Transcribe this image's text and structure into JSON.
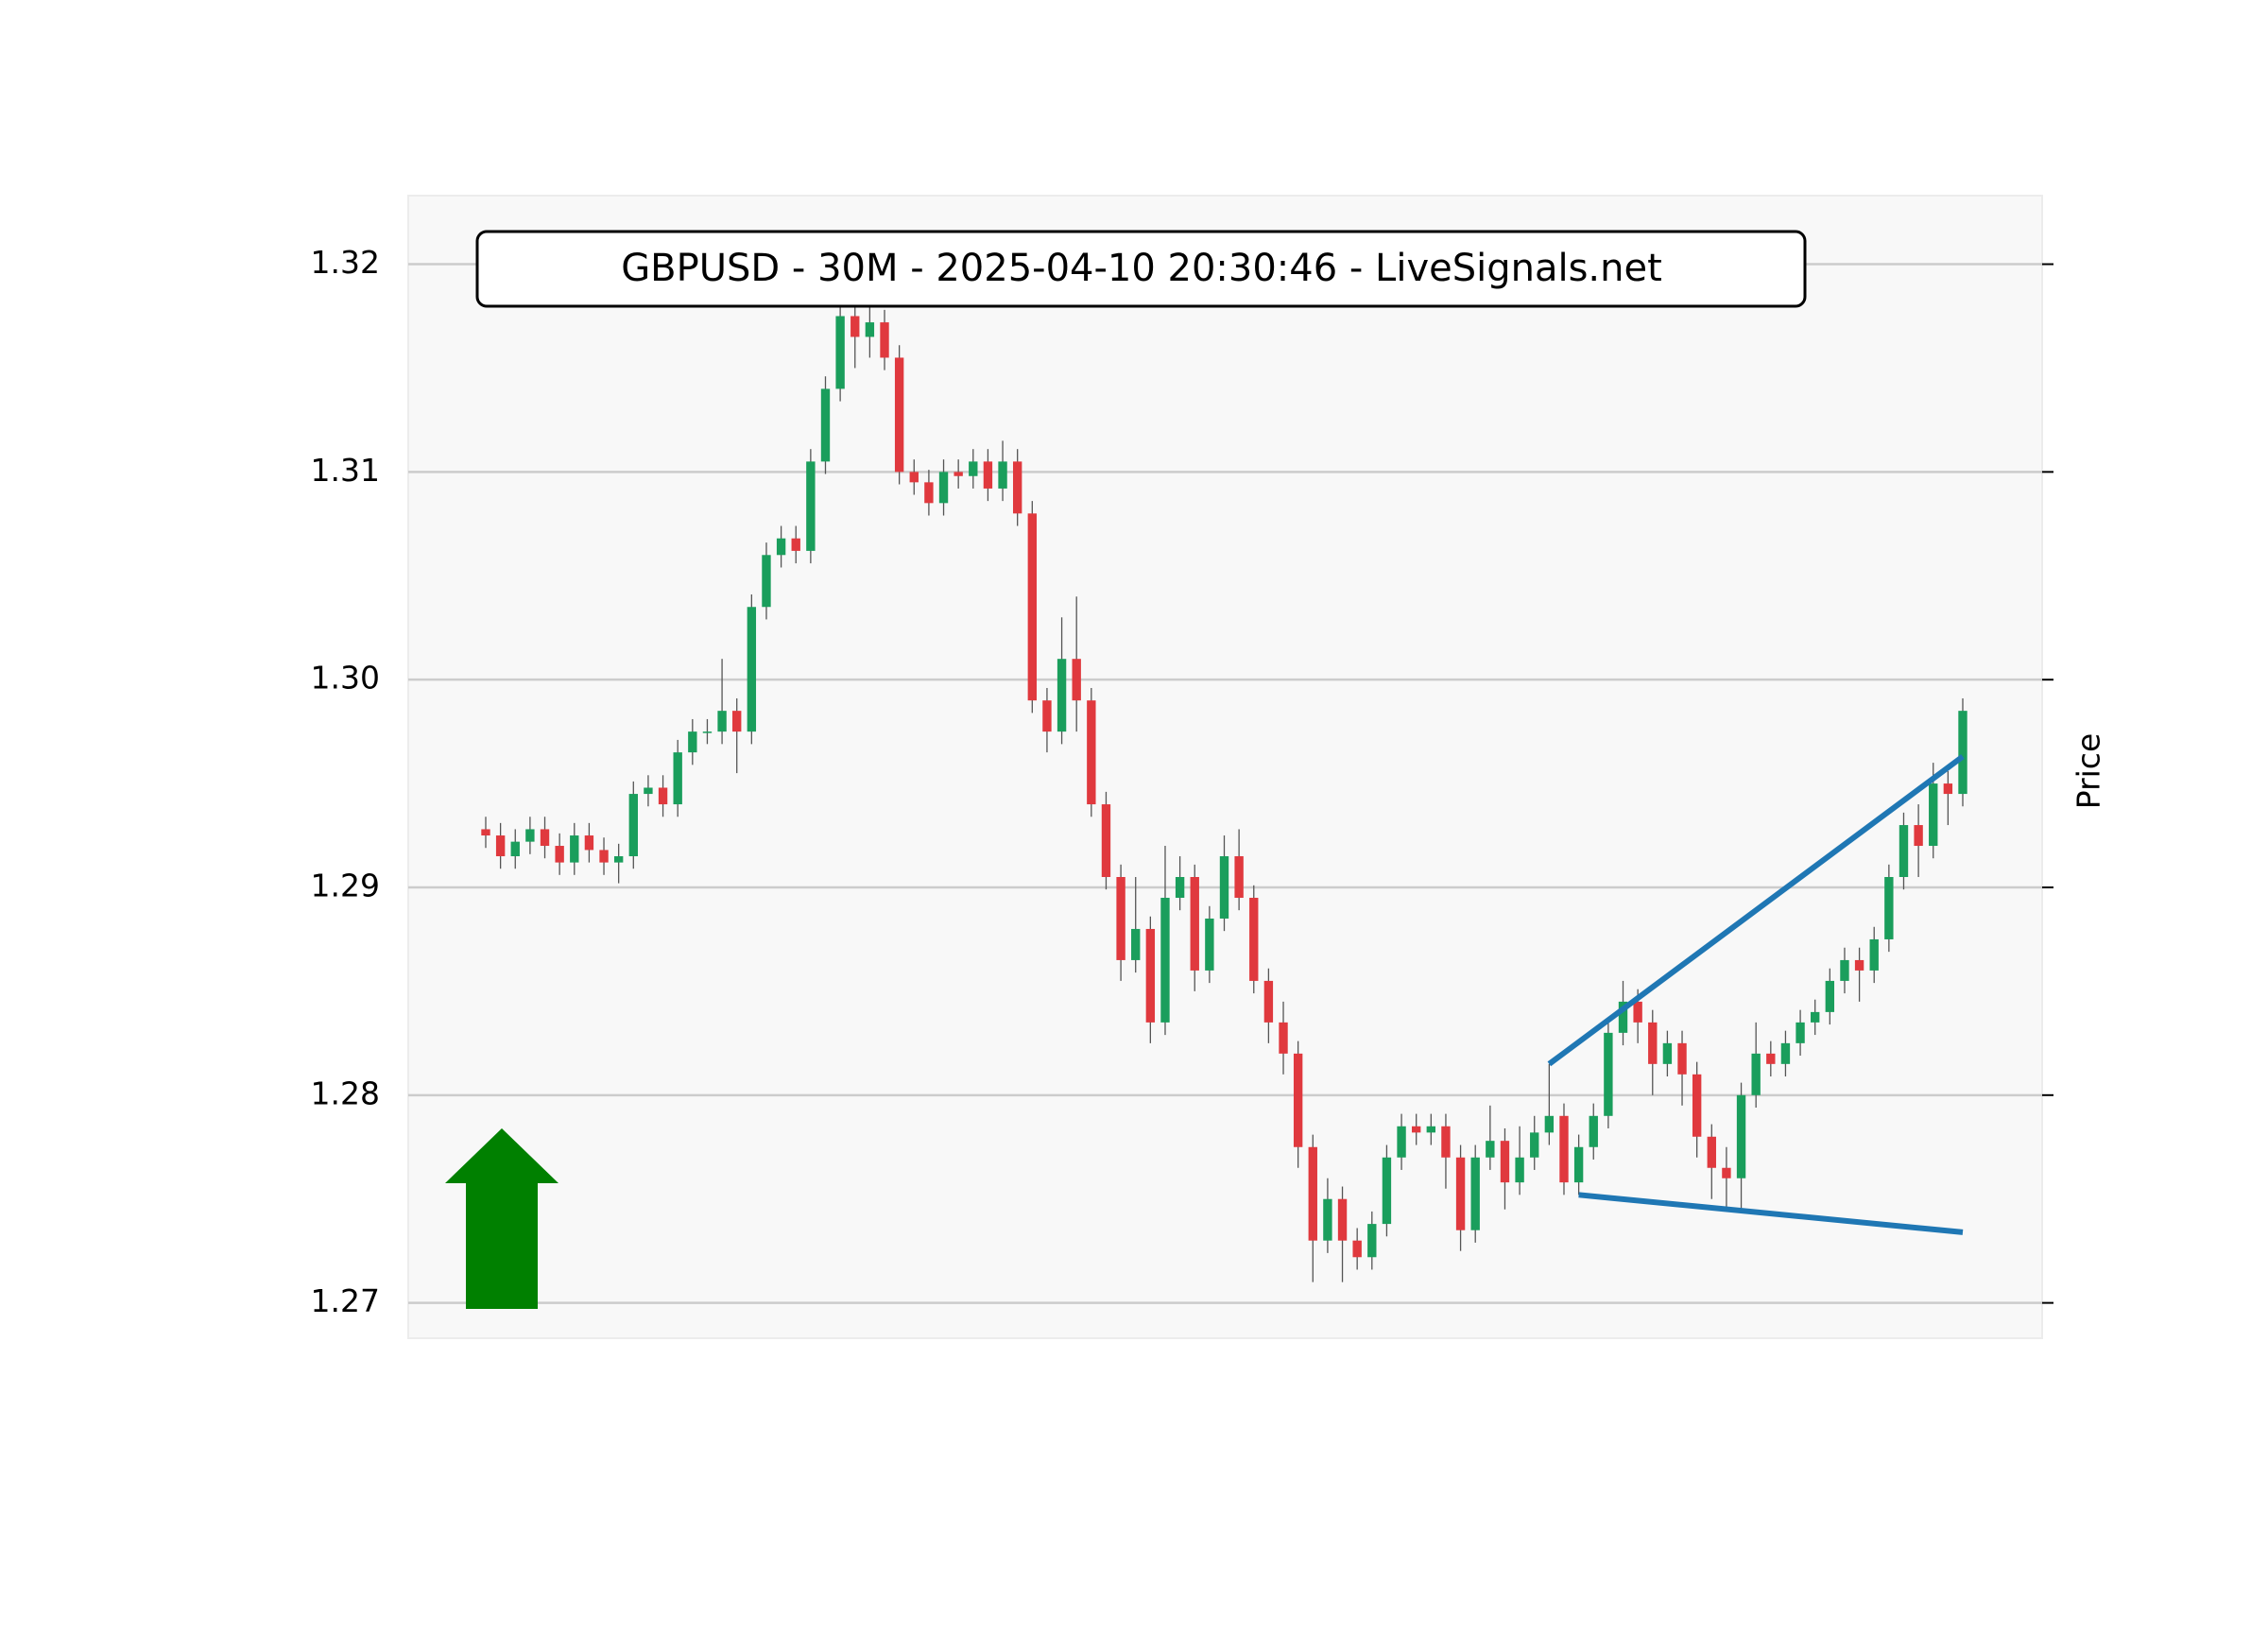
{
  "chart_data": {
    "type": "candlestick",
    "title": "GBPUSD - 30M - 2025-04-10 20:30:46 - LiveSignals.net",
    "ylabel": "Price",
    "up_color": "#1a9e5c",
    "down_color": "#e0393e",
    "ylim": [
      1.2683,
      1.3233
    ],
    "yticks": [
      1.27,
      1.28,
      1.29,
      {
        "value": 1.3,
        "label": "1.30"
      },
      1.31,
      1.32
    ],
    "grid": true,
    "open": [
      1.2928,
      1.2925,
      1.2915,
      1.2922,
      1.2928,
      1.292,
      1.2912,
      1.2925,
      1.2918,
      1.2912,
      1.2915,
      1.2945,
      1.2948,
      1.294,
      1.2965,
      1.2975,
      1.2975,
      1.2985,
      1.2975,
      1.3035,
      1.306,
      1.3068,
      1.3062,
      1.3105,
      1.314,
      1.3175,
      1.3165,
      1.3172,
      1.3155,
      1.31,
      1.3095,
      1.3085,
      1.31,
      1.3098,
      1.3105,
      1.3092,
      1.3105,
      1.308,
      1.299,
      1.2975,
      1.301,
      1.299,
      1.294,
      1.2905,
      1.2865,
      1.288,
      1.2835,
      1.2895,
      1.2905,
      1.286,
      1.2885,
      1.2915,
      1.2895,
      1.2855,
      1.2835,
      1.282,
      1.2775,
      1.273,
      1.275,
      1.273,
      1.2722,
      1.2738,
      1.277,
      1.2785,
      1.2782,
      1.2785,
      1.277,
      1.2735,
      1.277,
      1.2778,
      1.2758,
      1.277,
      1.2782,
      1.279,
      1.2758,
      1.2775,
      1.279,
      1.283,
      1.2845,
      1.2835,
      1.2815,
      1.2825,
      1.281,
      1.278,
      1.2765,
      1.276,
      1.28,
      1.282,
      1.2815,
      1.2825,
      1.2835,
      1.284,
      1.2855,
      1.2865,
      1.286,
      1.2875,
      1.2905,
      1.293,
      1.292,
      1.295,
      1.2945
    ],
    "high": [
      1.2934,
      1.2931,
      1.2928,
      1.2934,
      1.2934,
      1.2926,
      1.2931,
      1.2931,
      1.2924,
      1.2921,
      1.2951,
      1.2954,
      1.2954,
      1.2971,
      1.2981,
      1.2981,
      1.301,
      1.2991,
      1.3041,
      1.3066,
      1.3074,
      1.3074,
      1.3111,
      1.3146,
      1.3195,
      1.319,
      1.3185,
      1.3178,
      1.3161,
      1.3106,
      1.3101,
      1.3106,
      1.3106,
      1.3111,
      1.3111,
      1.3115,
      1.3111,
      1.3086,
      1.2996,
      1.303,
      1.304,
      1.2996,
      1.2946,
      1.2911,
      1.2905,
      1.2886,
      1.292,
      1.2915,
      1.2911,
      1.2891,
      1.2925,
      1.2928,
      1.2901,
      1.2861,
      1.2845,
      1.2826,
      1.2781,
      1.276,
      1.2756,
      1.2736,
      1.2744,
      1.2776,
      1.2791,
      1.2791,
      1.2791,
      1.2791,
      1.2776,
      1.2776,
      1.2795,
      1.2784,
      1.2785,
      1.279,
      1.2815,
      1.2796,
      1.2781,
      1.2796,
      1.2836,
      1.2855,
      1.2851,
      1.2841,
      1.2831,
      1.2831,
      1.2816,
      1.2786,
      1.2775,
      1.2806,
      1.2835,
      1.2826,
      1.2831,
      1.2841,
      1.2846,
      1.2861,
      1.2871,
      1.2871,
      1.2881,
      1.2911,
      1.2936,
      1.294,
      1.296,
      1.2956,
      1.2991
    ],
    "low": [
      1.2919,
      1.2909,
      1.2909,
      1.2916,
      1.2914,
      1.2906,
      1.2906,
      1.2912,
      1.2906,
      1.2902,
      1.2909,
      1.2939,
      1.2934,
      1.2934,
      1.2959,
      1.2969,
      1.2969,
      1.2955,
      1.2969,
      1.3029,
      1.3054,
      1.3056,
      1.3056,
      1.3099,
      1.3134,
      1.315,
      1.3155,
      1.3149,
      1.3094,
      1.3089,
      1.3079,
      1.3079,
      1.3092,
      1.3092,
      1.3086,
      1.3086,
      1.3074,
      1.2984,
      1.2965,
      1.2969,
      1.2975,
      1.2934,
      1.2899,
      1.2855,
      1.2859,
      1.2825,
      1.2829,
      1.2889,
      1.285,
      1.2854,
      1.2879,
      1.2889,
      1.2849,
      1.2825,
      1.281,
      1.2765,
      1.271,
      1.2724,
      1.271,
      1.2716,
      1.2716,
      1.2732,
      1.2764,
      1.2776,
      1.2776,
      1.2755,
      1.2725,
      1.2729,
      1.2764,
      1.2745,
      1.2752,
      1.2764,
      1.2776,
      1.2752,
      1.2752,
      1.2769,
      1.2784,
      1.2824,
      1.2825,
      1.28,
      1.2809,
      1.2795,
      1.277,
      1.275,
      1.2745,
      1.2745,
      1.2794,
      1.2809,
      1.2809,
      1.2819,
      1.2829,
      1.2834,
      1.2849,
      1.2845,
      1.2854,
      1.2869,
      1.2899,
      1.2905,
      1.2914,
      1.293,
      1.2939
    ],
    "close": [
      1.2925,
      1.2915,
      1.2922,
      1.2928,
      1.292,
      1.2912,
      1.2925,
      1.2918,
      1.2912,
      1.2915,
      1.2945,
      1.2948,
      1.294,
      1.2965,
      1.2975,
      1.2975,
      1.2985,
      1.2975,
      1.3035,
      1.306,
      1.3068,
      1.3062,
      1.3105,
      1.314,
      1.3175,
      1.3165,
      1.3172,
      1.3155,
      1.31,
      1.3095,
      1.3085,
      1.31,
      1.3098,
      1.3105,
      1.3092,
      1.3105,
      1.308,
      1.299,
      1.2975,
      1.301,
      1.299,
      1.294,
      1.2905,
      1.2865,
      1.288,
      1.2835,
      1.2895,
      1.2905,
      1.286,
      1.2885,
      1.2915,
      1.2895,
      1.2855,
      1.2835,
      1.282,
      1.2775,
      1.273,
      1.275,
      1.273,
      1.2722,
      1.2738,
      1.277,
      1.2785,
      1.2782,
      1.2785,
      1.277,
      1.2735,
      1.277,
      1.2778,
      1.2758,
      1.277,
      1.2782,
      1.279,
      1.2758,
      1.2775,
      1.279,
      1.283,
      1.2845,
      1.2835,
      1.2815,
      1.2825,
      1.281,
      1.278,
      1.2765,
      1.276,
      1.28,
      1.282,
      1.2815,
      1.2825,
      1.2835,
      1.284,
      1.2855,
      1.2865,
      1.286,
      1.2875,
      1.2905,
      1.293,
      1.292,
      1.295,
      1.2945,
      1.2985
    ],
    "trendlines": [
      {
        "x": [
          72,
          100
        ],
        "y": [
          1.2815,
          1.2963
        ],
        "color": "#1f77b4"
      },
      {
        "x": [
          74,
          100
        ],
        "y": [
          1.2752,
          1.2734
        ],
        "color": "#1f77b4"
      }
    ]
  }
}
